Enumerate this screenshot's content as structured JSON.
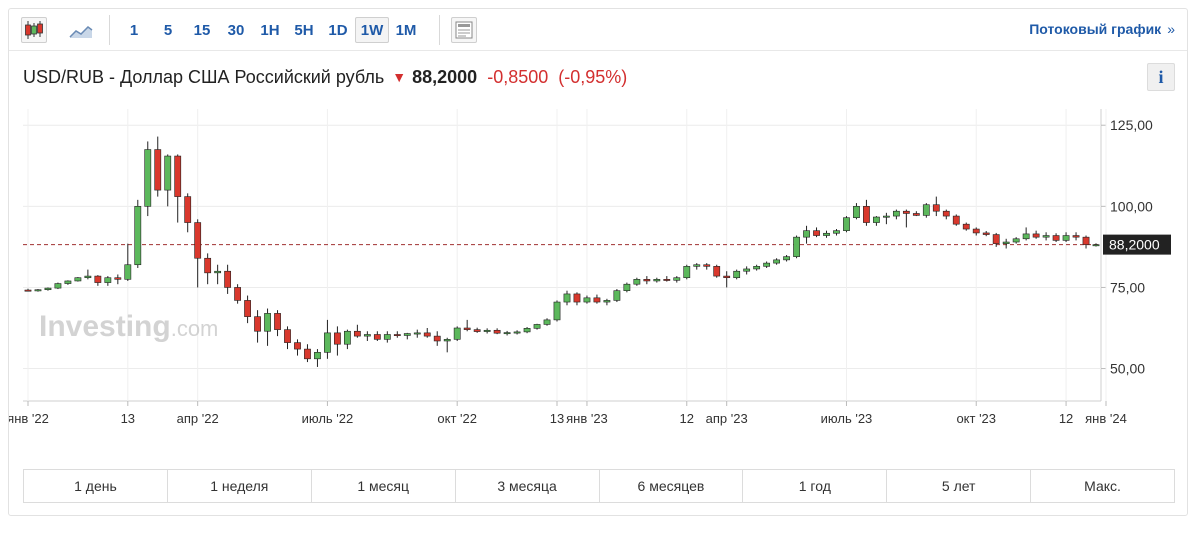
{
  "toolbar": {
    "timeframes": [
      "1",
      "5",
      "15",
      "30",
      "1H",
      "5H",
      "1D",
      "1W",
      "1M"
    ],
    "active_timeframe": "1W",
    "stream_label": "Потоковый график",
    "stream_arrow": "»"
  },
  "header": {
    "pair": "USD/RUB - Доллар США Российский рубль",
    "price": "88,2000",
    "change": "-0,8500",
    "change_pct": "(-0,95%)",
    "info_label": "i"
  },
  "watermark": "Investing",
  "watermark_suffix": ".com",
  "periods": [
    "1 день",
    "1 неделя",
    "1 месяц",
    "3 месяца",
    "6 месяцев",
    "1 год",
    "5 лет",
    "Макс."
  ],
  "colors": {
    "up": "#5cb85c",
    "down": "#d9382d",
    "accent": "#1f5aa8",
    "last_price_bg": "#222222"
  },
  "chart_data": {
    "type": "candlestick",
    "interval": "weekly",
    "ylim": [
      40,
      130
    ],
    "y_ticks": [
      50,
      75,
      100,
      125
    ],
    "y_tick_labels": [
      "50,00",
      "75,00",
      "100,00",
      "125,00"
    ],
    "x_tick_labels": [
      "янв '22",
      "13",
      "апр '22",
      "июль '22",
      "окт '22",
      "13",
      "янв '23",
      "12",
      "апр '23",
      "июль '23",
      "окт '23",
      "12",
      "янв '24"
    ],
    "x_tick_positions": [
      0,
      10,
      17,
      30,
      43,
      53,
      56,
      66,
      70,
      82,
      95,
      104,
      108
    ],
    "last_price": 88.2,
    "last_price_label": "88,2000",
    "candles": [
      [
        74.2,
        74.6,
        73.8,
        74.0
      ],
      [
        74.0,
        74.5,
        73.7,
        74.3
      ],
      [
        74.3,
        75.0,
        74.0,
        74.8
      ],
      [
        74.8,
        76.5,
        74.5,
        76.2
      ],
      [
        76.2,
        77.2,
        75.8,
        77.0
      ],
      [
        77.0,
        78.2,
        76.8,
        78.0
      ],
      [
        78.0,
        80.5,
        77.5,
        78.5
      ],
      [
        78.5,
        78.8,
        75.5,
        76.5
      ],
      [
        76.5,
        78.5,
        75.5,
        78.0
      ],
      [
        78.0,
        79.0,
        76.0,
        77.5
      ],
      [
        77.5,
        88.5,
        77.0,
        82.0
      ],
      [
        82.0,
        102.0,
        81.0,
        100.0
      ],
      [
        100.0,
        120.0,
        97.0,
        117.5
      ],
      [
        117.5,
        121.5,
        103.0,
        105.0
      ],
      [
        105.0,
        116.0,
        100.0,
        115.5
      ],
      [
        115.5,
        116.0,
        95.0,
        103.0
      ],
      [
        103.0,
        104.0,
        92.0,
        95.0
      ],
      [
        95.0,
        96.0,
        75.0,
        84.0
      ],
      [
        84.0,
        85.5,
        76.0,
        79.5
      ],
      [
        79.5,
        82.0,
        76.0,
        80.0
      ],
      [
        80.0,
        82.0,
        73.0,
        75.0
      ],
      [
        75.0,
        76.0,
        70.0,
        71.0
      ],
      [
        71.0,
        72.5,
        64.0,
        66.0
      ],
      [
        66.0,
        68.0,
        58.0,
        61.5
      ],
      [
        61.5,
        68.5,
        57.0,
        67.0
      ],
      [
        67.0,
        68.0,
        60.0,
        62.0
      ],
      [
        62.0,
        63.0,
        56.0,
        58.0
      ],
      [
        58.0,
        59.0,
        54.0,
        56.0
      ],
      [
        56.0,
        57.5,
        52.0,
        53.0
      ],
      [
        53.0,
        56.0,
        50.5,
        55.0
      ],
      [
        55.0,
        65.0,
        53.0,
        61.0
      ],
      [
        61.0,
        63.0,
        54.0,
        57.5
      ],
      [
        57.5,
        62.0,
        56.0,
        61.5
      ],
      [
        61.5,
        63.5,
        59.5,
        60.0
      ],
      [
        60.0,
        61.5,
        58.5,
        60.5
      ],
      [
        60.5,
        61.5,
        58.5,
        59.0
      ],
      [
        59.0,
        61.5,
        58.0,
        60.5
      ],
      [
        60.5,
        61.5,
        59.5,
        60.2
      ],
      [
        60.2,
        61.0,
        59.0,
        60.8
      ],
      [
        60.8,
        62.0,
        59.5,
        61.0
      ],
      [
        61.0,
        62.5,
        59.5,
        60.0
      ],
      [
        60.0,
        61.5,
        57.0,
        58.5
      ],
      [
        58.5,
        59.5,
        55.0,
        59.0
      ],
      [
        59.0,
        63.0,
        58.5,
        62.5
      ],
      [
        62.5,
        65.0,
        61.5,
        62.0
      ],
      [
        62.0,
        62.6,
        61.0,
        61.4
      ],
      [
        61.4,
        62.4,
        60.8,
        61.8
      ],
      [
        61.8,
        62.4,
        60.6,
        60.9
      ],
      [
        60.9,
        61.6,
        60.2,
        61.1
      ],
      [
        61.1,
        61.8,
        60.5,
        61.3
      ],
      [
        61.3,
        62.8,
        60.9,
        62.4
      ],
      [
        62.4,
        63.8,
        62.0,
        63.6
      ],
      [
        63.6,
        65.5,
        63.2,
        65.0
      ],
      [
        65.0,
        71.0,
        64.5,
        70.5
      ],
      [
        70.5,
        74.0,
        69.5,
        73.0
      ],
      [
        73.0,
        73.5,
        69.5,
        70.5
      ],
      [
        70.5,
        72.5,
        70.0,
        71.8
      ],
      [
        71.8,
        72.8,
        70.0,
        70.5
      ],
      [
        70.5,
        71.5,
        69.5,
        71.0
      ],
      [
        71.0,
        74.5,
        70.5,
        74.0
      ],
      [
        74.0,
        76.5,
        73.5,
        76.0
      ],
      [
        76.0,
        78.0,
        75.5,
        77.5
      ],
      [
        77.5,
        78.5,
        76.0,
        77.0
      ],
      [
        77.0,
        78.0,
        76.5,
        77.5
      ],
      [
        77.5,
        78.5,
        76.8,
        77.2
      ],
      [
        77.2,
        78.5,
        76.5,
        78.0
      ],
      [
        78.0,
        82.0,
        77.5,
        81.5
      ],
      [
        81.5,
        82.5,
        80.5,
        82.0
      ],
      [
        82.0,
        82.5,
        80.5,
        81.5
      ],
      [
        81.5,
        82.0,
        78.0,
        78.5
      ],
      [
        78.5,
        80.0,
        75.0,
        78.0
      ],
      [
        78.0,
        80.5,
        77.5,
        80.0
      ],
      [
        80.0,
        81.5,
        79.0,
        80.7
      ],
      [
        80.7,
        82.0,
        80.2,
        81.5
      ],
      [
        81.5,
        83.0,
        81.0,
        82.5
      ],
      [
        82.5,
        84.0,
        82.0,
        83.5
      ],
      [
        83.5,
        85.0,
        83.0,
        84.5
      ],
      [
        84.5,
        91.0,
        84.0,
        90.5
      ],
      [
        90.5,
        94.0,
        88.5,
        92.5
      ],
      [
        92.5,
        93.5,
        90.5,
        91.0
      ],
      [
        91.0,
        92.5,
        90.3,
        91.7
      ],
      [
        91.7,
        93.0,
        91.0,
        92.5
      ],
      [
        92.5,
        97.0,
        92.0,
        96.5
      ],
      [
        96.5,
        101.0,
        96.0,
        100.0
      ],
      [
        100.0,
        102.0,
        94.0,
        95.0
      ],
      [
        95.0,
        97.0,
        94.0,
        96.7
      ],
      [
        96.7,
        98.0,
        94.5,
        97.0
      ],
      [
        97.0,
        99.0,
        96.0,
        98.5
      ],
      [
        98.5,
        99.0,
        93.5,
        97.8
      ],
      [
        97.8,
        98.5,
        97.0,
        97.2
      ],
      [
        97.2,
        101.0,
        96.5,
        100.5
      ],
      [
        100.5,
        103.0,
        97.0,
        98.5
      ],
      [
        98.5,
        99.0,
        96.0,
        97.0
      ],
      [
        97.0,
        97.5,
        94.0,
        94.5
      ],
      [
        94.5,
        95.0,
        92.5,
        93.0
      ],
      [
        93.0,
        93.5,
        91.0,
        91.8
      ],
      [
        91.8,
        92.4,
        90.8,
        91.3
      ],
      [
        91.3,
        91.8,
        87.5,
        88.5
      ],
      [
        88.5,
        90.0,
        87.0,
        89.0
      ],
      [
        89.0,
        90.5,
        88.5,
        90.0
      ],
      [
        90.0,
        93.5,
        89.5,
        91.5
      ],
      [
        91.5,
        92.5,
        90.0,
        90.5
      ],
      [
        90.5,
        92.0,
        89.5,
        91.0
      ],
      [
        91.0,
        91.7,
        89.0,
        89.5
      ],
      [
        89.5,
        92.0,
        89.0,
        91.0
      ],
      [
        91.0,
        92.0,
        89.5,
        90.5
      ],
      [
        90.5,
        91.0,
        87.0,
        88.2
      ],
      [
        88.2,
        88.6,
        87.6,
        88.2
      ]
    ]
  }
}
